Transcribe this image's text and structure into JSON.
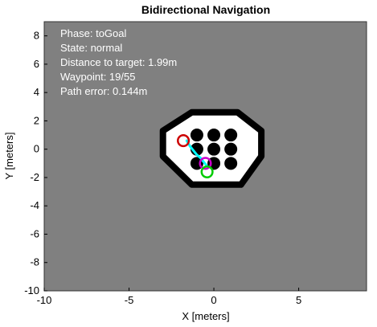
{
  "plot": {
    "title": "Bidirectional Navigation",
    "xlabel": "X [meters]",
    "ylabel": "Y [meters]",
    "xlim": [
      -10,
      9
    ],
    "ylim": [
      -10,
      9
    ],
    "x_ticks": [
      -10,
      -5,
      0,
      5
    ],
    "y_ticks": [
      -10,
      -8,
      -6,
      -4,
      -2,
      0,
      2,
      4,
      6,
      8
    ],
    "background_color": "#808080",
    "grid": false
  },
  "status": {
    "phase": "Phase: toGoal",
    "state": "State: normal",
    "distance": "Distance to target: 1.99m",
    "waypoint": "Waypoint: 19/55",
    "path_error": "Path error: 0.144m"
  },
  "map": {
    "free_space_color": "#ffffff",
    "obstacle_color": "#000000",
    "arena_outline": [
      [
        -1.3,
        2.6
      ],
      [
        1.4,
        2.6
      ],
      [
        2.8,
        1.3
      ],
      [
        2.8,
        -0.5
      ],
      [
        1.6,
        -2.5
      ],
      [
        -1.3,
        -2.5
      ],
      [
        -3.0,
        -0.5
      ],
      [
        -3.0,
        1.3
      ]
    ],
    "pillars": [
      {
        "x": -1.0,
        "y": 1.0
      },
      {
        "x": 0.0,
        "y": 1.0
      },
      {
        "x": 1.0,
        "y": 1.0
      },
      {
        "x": -1.0,
        "y": 0.0
      },
      {
        "x": 0.0,
        "y": 0.0
      },
      {
        "x": 1.0,
        "y": 0.0
      },
      {
        "x": -1.0,
        "y": -1.0
      },
      {
        "x": 0.0,
        "y": -1.0
      },
      {
        "x": 1.0,
        "y": -1.0
      }
    ]
  },
  "path": {
    "color": "#00ffff",
    "points": [
      [
        -1.6,
        0.6
      ],
      [
        -1.4,
        0.2
      ],
      [
        -1.2,
        -0.1
      ],
      [
        -1.0,
        -0.4
      ],
      [
        -0.8,
        -0.6
      ],
      [
        -0.6,
        -0.9
      ],
      [
        -0.4,
        -1.2
      ]
    ]
  },
  "markers": [
    {
      "name": "start",
      "x": -1.8,
      "y": 0.6,
      "color": "#cc0000"
    },
    {
      "name": "robot",
      "x": -0.5,
      "y": -1.0,
      "color": "#cc00cc"
    },
    {
      "name": "goal",
      "x": -0.4,
      "y": -1.6,
      "color": "#00cc00"
    }
  ]
}
